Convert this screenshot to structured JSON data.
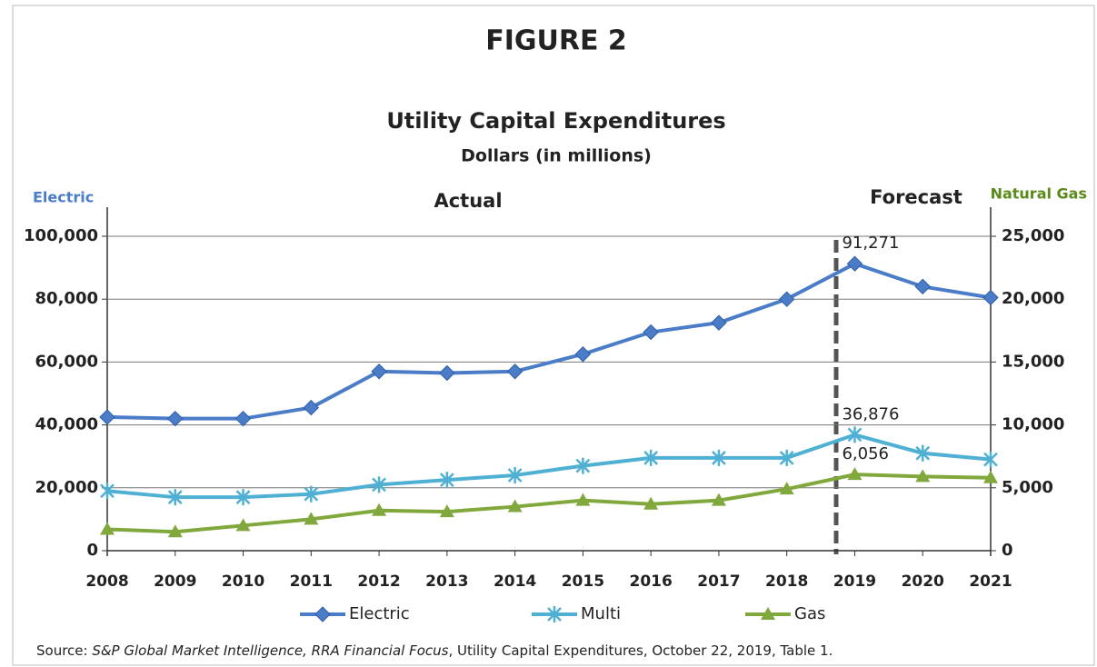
{
  "chart_data": {
    "type": "line",
    "header": "FIGURE 2",
    "title": "Utility Capital Expenditures",
    "subtitle": "Dollars (in millions)",
    "ylabel": "Electric",
    "y2label": "Natural Gas",
    "annotations": [
      "Actual",
      "Forecast"
    ],
    "source": [
      {
        "text": "Source: "
      },
      {
        "text": "S&P Global Market Intelligence, RRA Financial Focus",
        "italic": true
      },
      {
        "text": ", Utility Capital Expenditures, October 22, 2019, Table 1."
      }
    ],
    "categories": [
      "2008",
      "2009",
      "2010",
      "2011",
      "2012",
      "2013",
      "2014",
      "2015",
      "2016",
      "2017",
      "2018",
      "2019",
      "2020",
      "2021"
    ],
    "series": [
      {
        "name": "Electric",
        "color": "#4a7cc8",
        "marker": "diamond",
        "values": [
          42500,
          42000,
          42000,
          45500,
          57000,
          56500,
          57000,
          62500,
          69500,
          72500,
          80000,
          91271,
          84000,
          80500
        ],
        "value_labels": [
          null,
          null,
          null,
          null,
          null,
          null,
          null,
          null,
          null,
          null,
          null,
          "91,271",
          null,
          null
        ]
      },
      {
        "name": "Multi",
        "color": "#4fb0d4",
        "marker": "asterisk",
        "values": [
          19000,
          17000,
          17000,
          18000,
          21000,
          22500,
          24000,
          27000,
          29500,
          29500,
          29500,
          36876,
          31000,
          29000
        ],
        "value_labels": [
          null,
          null,
          null,
          null,
          null,
          null,
          null,
          null,
          null,
          null,
          null,
          "36,876",
          null,
          null
        ]
      },
      {
        "name": "Gas",
        "color": "#80a83c",
        "marker": "triangle",
        "axis": "y2",
        "values": [
          1700,
          1500,
          2000,
          2500,
          3200,
          3100,
          3500,
          4000,
          3700,
          4000,
          4900,
          6056,
          5900,
          5800
        ],
        "value_labels": [
          null,
          null,
          null,
          null,
          null,
          null,
          null,
          null,
          null,
          null,
          null,
          "6,056",
          null,
          null
        ]
      }
    ],
    "ylim": [
      0,
      100000
    ],
    "yticks": [
      0,
      {
        "value": 20000,
        "label": "20,000"
      },
      {
        "value": 40000,
        "label": "40,000"
      },
      {
        "value": 60000,
        "label": "60,000"
      },
      {
        "value": 80000,
        "label": "80,000"
      },
      {
        "value": 100000,
        "label": "100,000"
      }
    ],
    "y2lim": [
      0,
      25000
    ],
    "y2ticks": [
      0,
      {
        "value": 5000,
        "label": "5,000"
      },
      {
        "value": 10000,
        "label": "10,000"
      },
      {
        "value": 15000,
        "label": "15,000"
      },
      {
        "value": 20000,
        "label": "20,000"
      },
      {
        "value": 25000,
        "label": "25,000"
      }
    ],
    "grid": true,
    "legend": "bottom"
  }
}
